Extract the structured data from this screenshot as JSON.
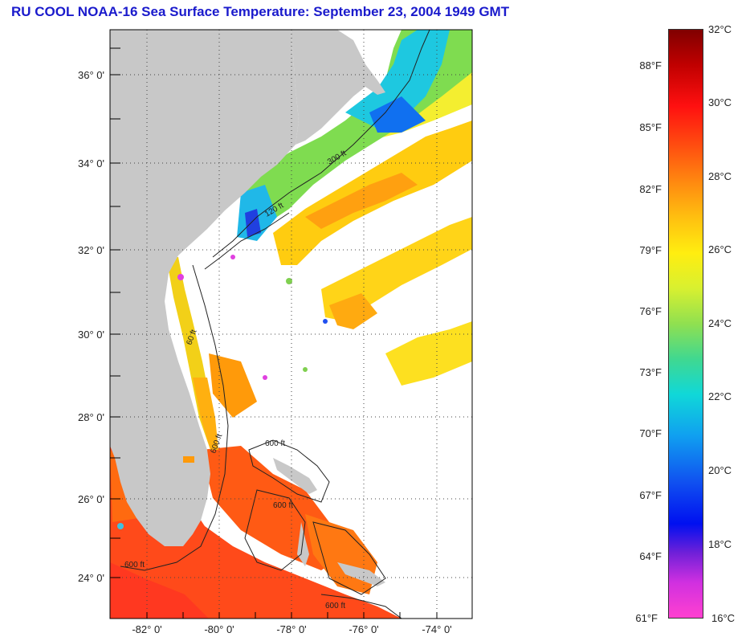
{
  "title": "RU COOL  NOAA-16  Sea Surface Temperature:  September 23, 2004 1949 GMT",
  "map": {
    "lat_labels": [
      "36° 0'",
      "34° 0'",
      "32° 0'",
      "30° 0'",
      "28° 0'",
      "26° 0'",
      "24° 0'"
    ],
    "lon_labels": [
      "-82° 0'",
      "-80° 0'",
      "-78° 0'",
      "-76° 0'",
      "-74° 0'"
    ],
    "contour_labels": [
      "60 ft",
      "120 ft",
      "300 ft",
      "600 ft",
      "600 ft",
      "600 ft",
      "600 ft",
      "600 ft"
    ],
    "colors": {
      "land": "#c8c8c8",
      "water_bg": "#ffffff",
      "grid": "#555555"
    }
  },
  "colorbar": {
    "fahrenheit_labels": [
      "88°F",
      "85°F",
      "82°F",
      "79°F",
      "76°F",
      "73°F",
      "70°F",
      "67°F",
      "64°F",
      "61°F"
    ],
    "celsius_labels": [
      "32°C",
      "30°C",
      "28°C",
      "26°C",
      "24°C",
      "22°C",
      "20°C",
      "18°C",
      "16°C"
    ],
    "range_c": [
      16,
      32
    ]
  }
}
